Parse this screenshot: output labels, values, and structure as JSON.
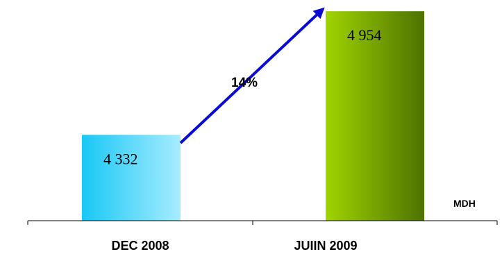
{
  "chart_data": {
    "type": "bar",
    "categories": [
      "DEC 2008",
      "JUIIN 2009"
    ],
    "values": [
      4332,
      4954
    ],
    "value_labels": [
      "4 332",
      "4 954"
    ],
    "unit": "MDH",
    "annotation": "14%",
    "ylim": [
      3900,
      5000
    ],
    "grid": false,
    "legend": "none",
    "colors": {
      "bar1_start": "#18c8f5",
      "bar1_end": "#a8ecff",
      "bar2_start": "#a0d400",
      "bar2_end": "#4e7200",
      "arrow": "#0a0ad6",
      "axis": "#000000"
    }
  }
}
